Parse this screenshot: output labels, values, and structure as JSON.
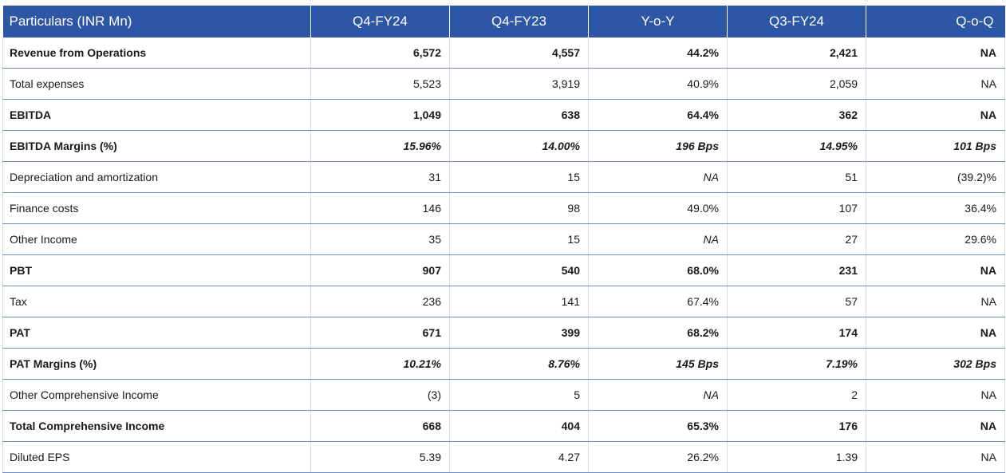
{
  "table": {
    "headers": [
      "Particulars (INR Mn)",
      "Q4-FY24",
      "Q4-FY23",
      "Y-o-Y",
      "Q3-FY24",
      "Q-o-Q"
    ],
    "rows": [
      {
        "label": "Revenue from Operations",
        "values": [
          "6,572",
          "4,557",
          "44.2%",
          "2,421",
          "NA"
        ],
        "style": "bold"
      },
      {
        "label": "Total expenses",
        "values": [
          "5,523",
          "3,919",
          "40.9%",
          "2,059",
          "NA"
        ],
        "style": "normal"
      },
      {
        "label": "EBITDA",
        "values": [
          "1,049",
          "638",
          "64.4%",
          "362",
          "NA"
        ],
        "style": "bold"
      },
      {
        "label": "EBITDA Margins (%)",
        "values": [
          "15.96%",
          "14.00%",
          "196 Bps",
          "14.95%",
          "101 Bps"
        ],
        "style": "bold-italic"
      },
      {
        "label": "Depreciation and amortization",
        "values": [
          "31",
          "15",
          "NA",
          "51",
          "(39.2)%"
        ],
        "style": "normal",
        "italic_cells": [
          2
        ]
      },
      {
        "label": "Finance costs",
        "values": [
          "146",
          "98",
          "49.0%",
          "107",
          "36.4%"
        ],
        "style": "normal"
      },
      {
        "label": "Other Income",
        "values": [
          "35",
          "15",
          "NA",
          "27",
          "29.6%"
        ],
        "style": "normal",
        "italic_cells": [
          2
        ]
      },
      {
        "label": "PBT",
        "values": [
          "907",
          "540",
          "68.0%",
          "231",
          "NA"
        ],
        "style": "bold"
      },
      {
        "label": "Tax",
        "values": [
          "236",
          "141",
          "67.4%",
          "57",
          "NA"
        ],
        "style": "normal"
      },
      {
        "label": "PAT",
        "values": [
          "671",
          "399",
          "68.2%",
          "174",
          "NA"
        ],
        "style": "bold"
      },
      {
        "label": "PAT Margins (%)",
        "values": [
          "10.21%",
          "8.76%",
          "145 Bps",
          "7.19%",
          "302 Bps"
        ],
        "style": "bold-italic"
      },
      {
        "label": "Other Comprehensive Income",
        "values": [
          "(3)",
          "5",
          "NA",
          "2",
          "NA"
        ],
        "style": "normal",
        "italic_cells": [
          2
        ]
      },
      {
        "label": "Total Comprehensive Income",
        "values": [
          "668",
          "404",
          "65.3%",
          "176",
          "NA"
        ],
        "style": "bold"
      },
      {
        "label": "Diluted EPS",
        "values": [
          "5.39",
          "4.27",
          "26.2%",
          "1.39",
          "NA"
        ],
        "style": "normal"
      }
    ]
  }
}
